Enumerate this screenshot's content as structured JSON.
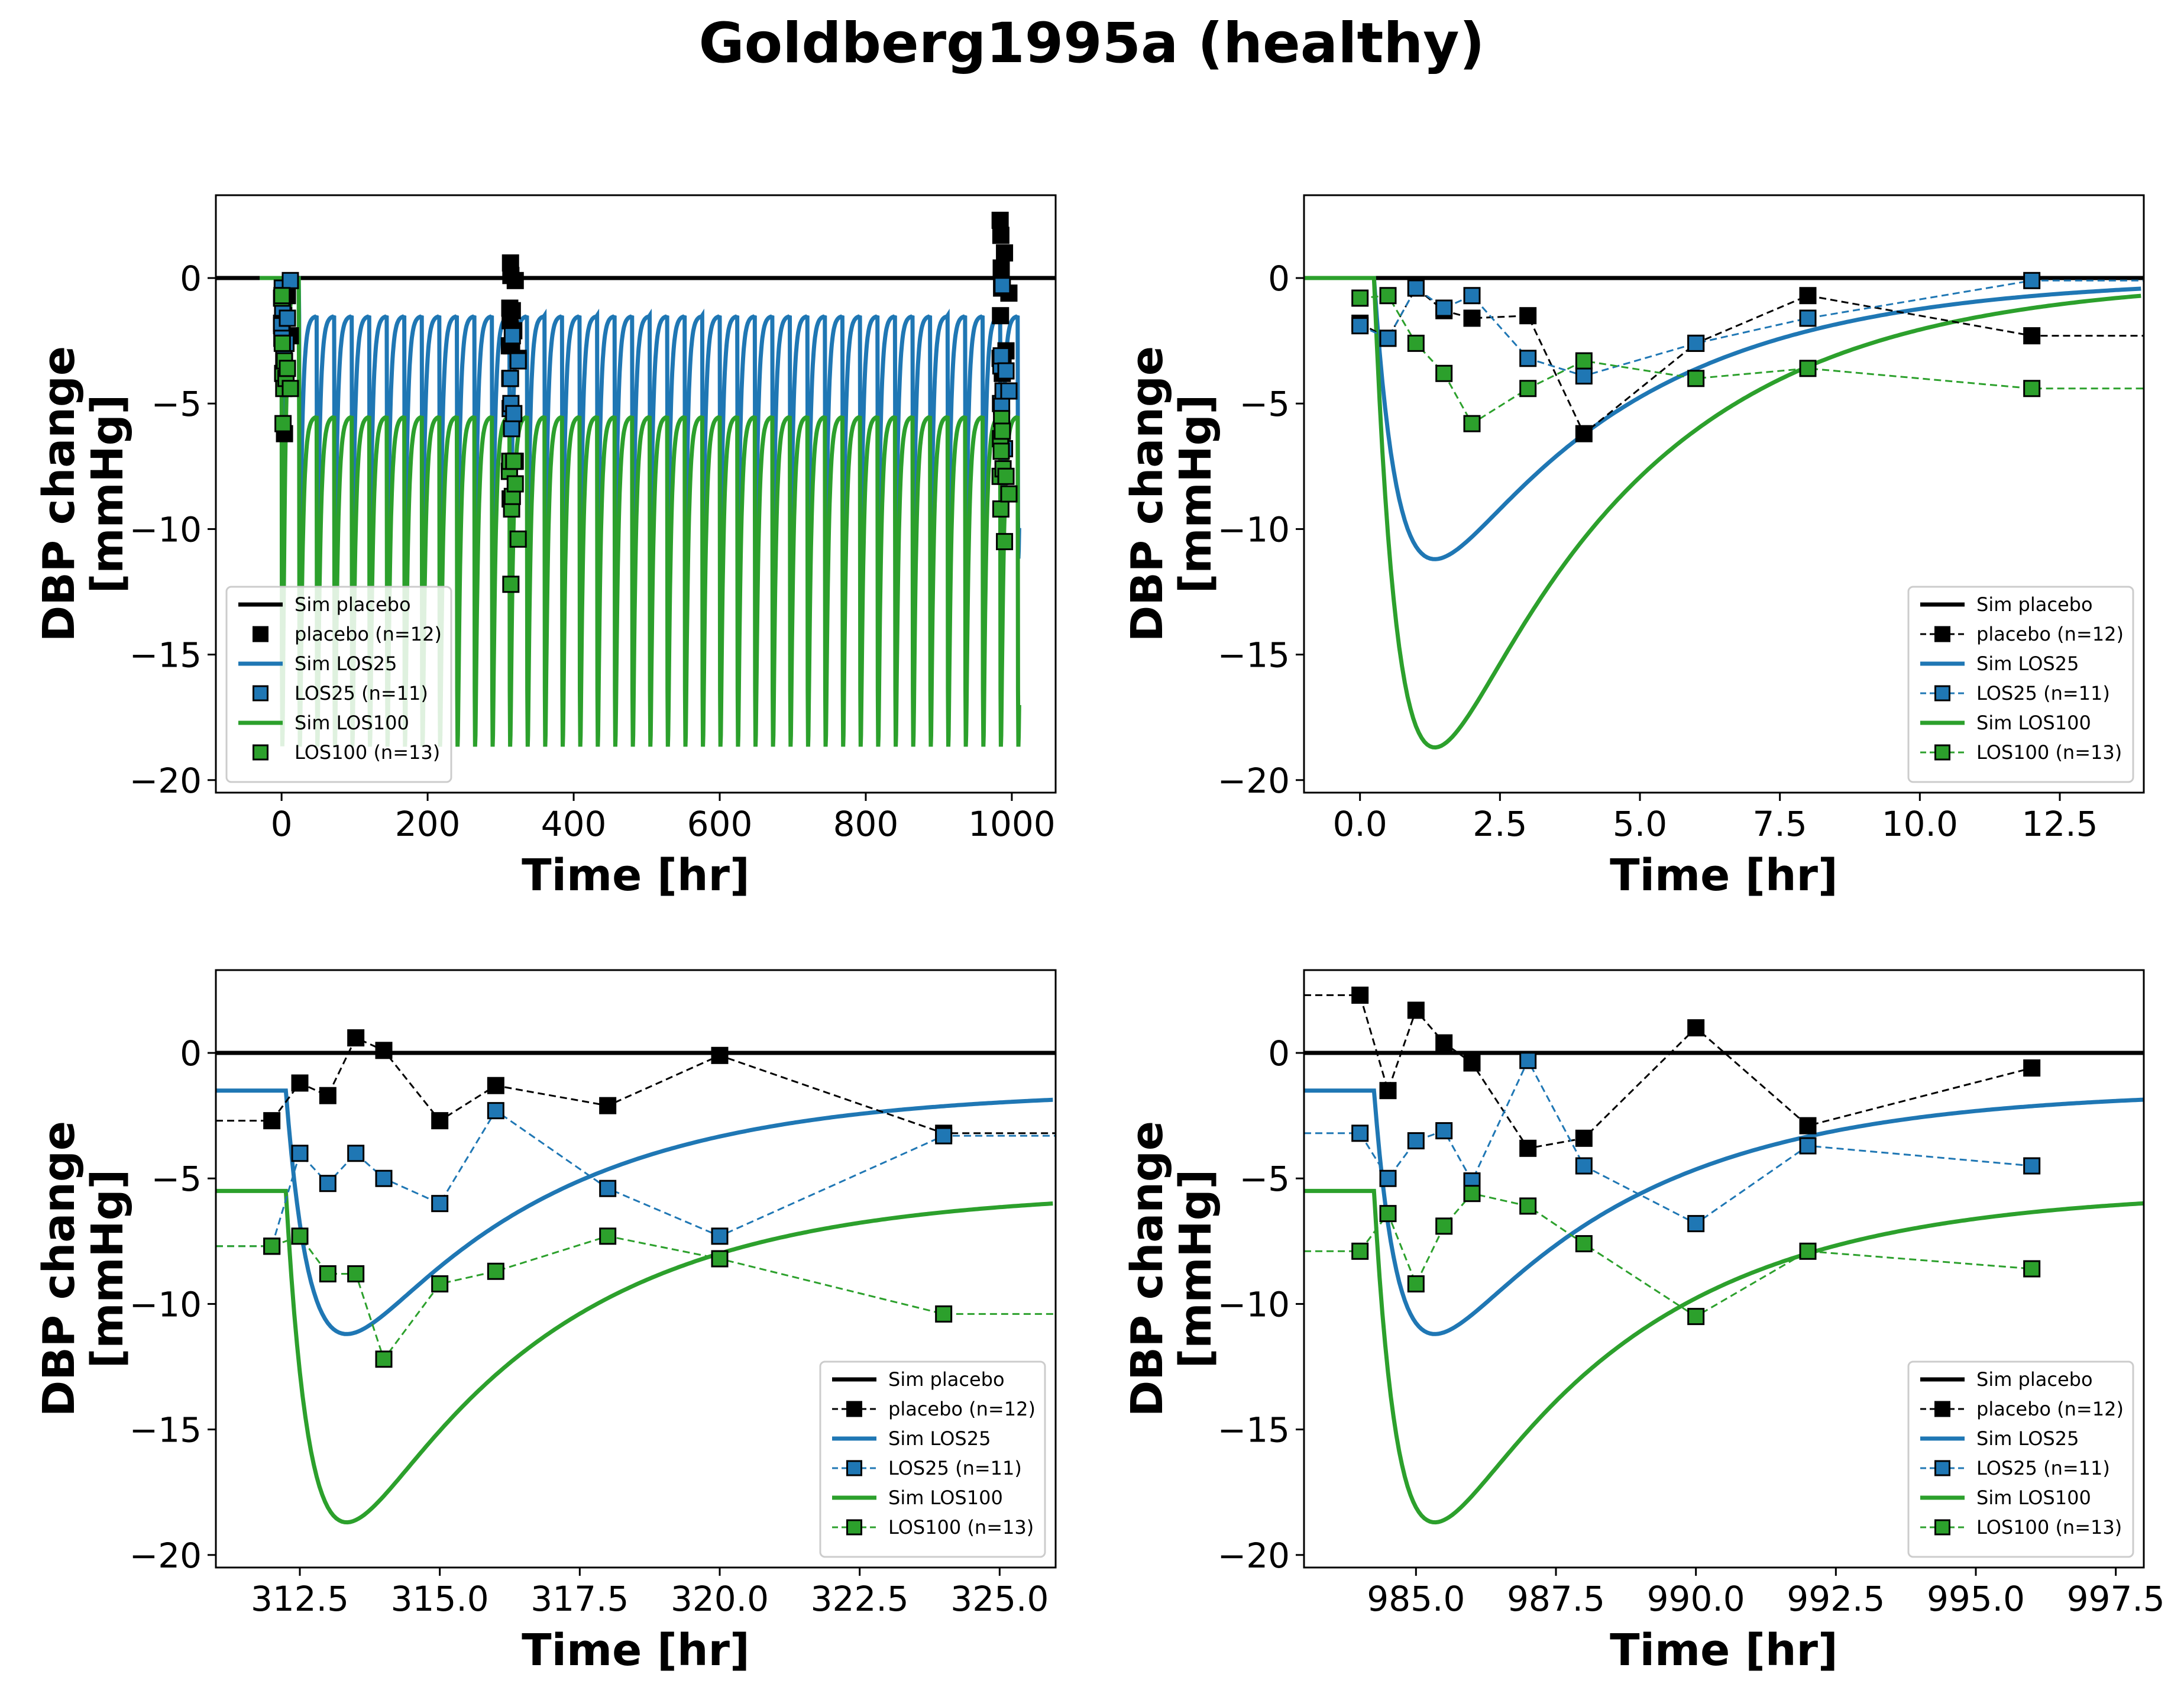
{
  "figure": {
    "title": "Goldberg1995a (healthy)"
  },
  "colors": {
    "placebo": "#000000",
    "los25": "#1f77b4",
    "los100": "#2ca02c"
  },
  "chart_data": [
    {
      "type": "line",
      "panel": "overview",
      "xlabel": "Time [hr]",
      "ylabel_line1": "DBP change",
      "ylabel_line2": "[mmHg]",
      "xlim": [
        -90,
        1060
      ],
      "ylim": [
        -20.5,
        3.3
      ],
      "xticks": [
        0,
        200,
        400,
        600,
        800,
        1000
      ],
      "xtick_labels": [
        "0",
        "200",
        "400",
        "600",
        "800",
        "1000"
      ],
      "yticks": [
        0,
        -5,
        -10,
        -15,
        -20
      ],
      "ytick_labels": [
        "0",
        "−5",
        "−10",
        "−15",
        "−20"
      ],
      "legend": {
        "position": "lower-left",
        "show_lines_for_data": false
      },
      "sim_range": [
        -30,
        1010
      ],
      "series": [
        {
          "name": "Sim placebo",
          "key": "placebo",
          "kind": "sim"
        },
        {
          "name": "placebo (n=12)",
          "key": "placebo",
          "kind": "data",
          "x": [
            0,
            0.5,
            1,
            1.5,
            2,
            3,
            4,
            6,
            8,
            12,
            312,
            312.5,
            313,
            313.5,
            314,
            315,
            316,
            318,
            320,
            324,
            984,
            984.5,
            985,
            985.5,
            986,
            987,
            988,
            990,
            992,
            996
          ],
          "y": [
            -1.8,
            -2.4,
            -0.4,
            -1.3,
            -1.6,
            -1.5,
            -6.2,
            -2.6,
            -0.7,
            -2.3,
            -2.7,
            -1.2,
            -1.7,
            0.6,
            0.1,
            -2.7,
            -1.3,
            -2.1,
            -0.1,
            -3.2,
            2.3,
            -1.5,
            1.7,
            0.4,
            -0.4,
            -3.8,
            -3.4,
            1.0,
            -2.9,
            -0.6
          ]
        },
        {
          "name": "Sim LOS25",
          "key": "los25",
          "kind": "sim"
        },
        {
          "name": "LOS25 (n=11)",
          "key": "los25",
          "kind": "data",
          "x": [
            0,
            0.5,
            1,
            1.5,
            2,
            3,
            4,
            6,
            8,
            12,
            312,
            312.5,
            313,
            313.5,
            314,
            315,
            316,
            318,
            320,
            324,
            984,
            984.5,
            985,
            985.5,
            986,
            987,
            988,
            990,
            992,
            996
          ],
          "y": [
            -1.9,
            -2.4,
            -0.4,
            -1.2,
            -0.7,
            -3.2,
            -3.9,
            -2.6,
            -1.6,
            -0.1,
            -7.7,
            -4.0,
            -5.2,
            -4.0,
            -5.0,
            -6.0,
            -2.3,
            -5.4,
            -7.3,
            -3.3,
            -3.2,
            -5.0,
            -3.5,
            -3.1,
            -5.1,
            -0.3,
            -4.5,
            -6.8,
            -3.7,
            -4.5
          ]
        },
        {
          "name": "Sim LOS100",
          "key": "los100",
          "kind": "sim"
        },
        {
          "name": "LOS100 (n=13)",
          "key": "los100",
          "kind": "data",
          "x": [
            0,
            0.5,
            1,
            1.5,
            2,
            3,
            4,
            6,
            8,
            12,
            312,
            312.5,
            313,
            313.5,
            314,
            315,
            316,
            318,
            320,
            324,
            984,
            984.5,
            985,
            985.5,
            986,
            987,
            988,
            990,
            992,
            996
          ],
          "y": [
            -0.8,
            -0.7,
            -2.6,
            -3.8,
            -5.8,
            -4.4,
            -3.3,
            -4.0,
            -3.6,
            -4.4,
            -7.7,
            -7.3,
            -8.8,
            -8.8,
            -12.2,
            -9.2,
            -8.7,
            -7.3,
            -8.2,
            -10.4,
            -7.9,
            -6.4,
            -9.2,
            -6.9,
            -5.6,
            -6.1,
            -7.6,
            -10.5,
            -7.9,
            -8.6
          ]
        }
      ]
    },
    {
      "type": "line",
      "panel": "day1",
      "xlabel": "Time [hr]",
      "ylabel_line1": "DBP change",
      "ylabel_line2": "[mmHg]",
      "xlim": [
        -1,
        14
      ],
      "ylim": [
        -20.5,
        3.3
      ],
      "xticks": [
        0,
        2.5,
        5,
        7.5,
        10,
        12.5
      ],
      "xtick_labels": [
        "0.0",
        "2.5",
        "5.0",
        "7.5",
        "10.0",
        "12.5"
      ],
      "yticks": [
        0,
        -5,
        -10,
        -15,
        -20
      ],
      "ytick_labels": [
        "0",
        "−5",
        "−10",
        "−15",
        "−20"
      ],
      "legend": {
        "position": "lower-right",
        "show_lines_for_data": true
      },
      "sim_dose_time": 0,
      "sim_baseline": {
        "los25": 0,
        "los100": 0
      },
      "series": [
        {
          "name": "Sim placebo",
          "key": "placebo",
          "kind": "sim"
        },
        {
          "name": "placebo (n=12)",
          "key": "placebo",
          "kind": "data",
          "x": [
            0,
            0.5,
            1,
            1.5,
            2,
            3,
            4,
            6,
            8,
            12,
            14
          ],
          "y": [
            -1.8,
            -2.4,
            -0.4,
            -1.3,
            -1.6,
            -1.5,
            -6.2,
            -2.6,
            -0.7,
            -2.3,
            -2.3
          ]
        },
        {
          "name": "Sim LOS25",
          "key": "los25",
          "kind": "sim"
        },
        {
          "name": "LOS25 (n=11)",
          "key": "los25",
          "kind": "data",
          "x": [
            0,
            0.5,
            1,
            1.5,
            2,
            3,
            4,
            6,
            8,
            12,
            14
          ],
          "y": [
            -1.9,
            -2.4,
            -0.4,
            -1.2,
            -0.7,
            -3.2,
            -3.9,
            -2.6,
            -1.6,
            -0.1,
            -0.1
          ]
        },
        {
          "name": "Sim LOS100",
          "key": "los100",
          "kind": "sim"
        },
        {
          "name": "LOS100 (n=13)",
          "key": "los100",
          "kind": "data",
          "x": [
            0,
            0.5,
            1,
            1.5,
            2,
            3,
            4,
            6,
            8,
            12,
            14
          ],
          "y": [
            -0.8,
            -0.7,
            -2.6,
            -3.8,
            -5.8,
            -4.4,
            -3.3,
            -4.0,
            -3.6,
            -4.4,
            -4.4
          ]
        }
      ]
    },
    {
      "type": "line",
      "panel": "day14",
      "xlabel": "Time [hr]",
      "ylabel_line1": "DBP change",
      "ylabel_line2": "[mmHg]",
      "xlim": [
        311,
        326
      ],
      "ylim": [
        -20.5,
        3.3
      ],
      "xticks": [
        312.5,
        315,
        317.5,
        320,
        322.5,
        325
      ],
      "xtick_labels": [
        "312.5",
        "315.0",
        "317.5",
        "320.0",
        "322.5",
        "325.0"
      ],
      "yticks": [
        0,
        -5,
        -10,
        -15,
        -20
      ],
      "ytick_labels": [
        "0",
        "−5",
        "−10",
        "−15",
        "−20"
      ],
      "legend": {
        "position": "lower-right",
        "show_lines_for_data": true
      },
      "sim_dose_time": 312,
      "sim_baseline": {
        "los25": -1.5,
        "los100": -5.5
      },
      "series": [
        {
          "name": "Sim placebo",
          "key": "placebo",
          "kind": "sim"
        },
        {
          "name": "placebo (n=12)",
          "key": "placebo",
          "kind": "data",
          "x": [
            311,
            312,
            312.5,
            313,
            313.5,
            314,
            315,
            316,
            318,
            320,
            324,
            326
          ],
          "y": [
            -2.7,
            -2.7,
            -1.2,
            -1.7,
            0.6,
            0.1,
            -2.7,
            -1.3,
            -2.1,
            -0.1,
            -3.2,
            -3.2
          ]
        },
        {
          "name": "Sim LOS25",
          "key": "los25",
          "kind": "sim"
        },
        {
          "name": "LOS25 (n=11)",
          "key": "los25",
          "kind": "data",
          "x": [
            311,
            312,
            312.5,
            313,
            313.5,
            314,
            315,
            316,
            318,
            320,
            324,
            326
          ],
          "y": [
            -7.7,
            -7.7,
            -4.0,
            -5.2,
            -4.0,
            -5.0,
            -6.0,
            -2.3,
            -5.4,
            -7.3,
            -3.3,
            -3.3
          ]
        },
        {
          "name": "Sim LOS100",
          "key": "los100",
          "kind": "sim"
        },
        {
          "name": "LOS100 (n=13)",
          "key": "los100",
          "kind": "data",
          "x": [
            311,
            312,
            312.5,
            313,
            313.5,
            314,
            315,
            316,
            318,
            320,
            324,
            326
          ],
          "y": [
            -7.7,
            -7.7,
            -7.3,
            -8.8,
            -8.8,
            -12.2,
            -9.2,
            -8.7,
            -7.3,
            -8.2,
            -10.4,
            -10.4
          ]
        }
      ]
    },
    {
      "type": "line",
      "panel": "day42",
      "xlabel": "Time [hr]",
      "ylabel_line1": "DBP change",
      "ylabel_line2": "[mmHg]",
      "xlim": [
        983,
        998
      ],
      "ylim": [
        -20.5,
        3.3
      ],
      "xticks": [
        985,
        987.5,
        990,
        992.5,
        995,
        997.5
      ],
      "xtick_labels": [
        "985.0",
        "987.5",
        "990.0",
        "992.5",
        "995.0",
        "997.5"
      ],
      "yticks": [
        0,
        -5,
        -10,
        -15,
        -20
      ],
      "ytick_labels": [
        "0",
        "−5",
        "−10",
        "−15",
        "−20"
      ],
      "legend": {
        "position": "lower-right",
        "show_lines_for_data": true
      },
      "sim_dose_time": 984,
      "sim_baseline": {
        "los25": -1.5,
        "los100": -5.5
      },
      "series": [
        {
          "name": "Sim placebo",
          "key": "placebo",
          "kind": "sim"
        },
        {
          "name": "placebo (n=12)",
          "key": "placebo",
          "kind": "data",
          "x": [
            983,
            984,
            984.5,
            985,
            985.5,
            986,
            987,
            988,
            990,
            992,
            996
          ],
          "y": [
            2.3,
            2.3,
            -1.5,
            1.7,
            0.4,
            -0.4,
            -3.8,
            -3.4,
            1.0,
            -2.9,
            -0.6
          ]
        },
        {
          "name": "Sim LOS25",
          "key": "los25",
          "kind": "sim"
        },
        {
          "name": "LOS25 (n=11)",
          "key": "los25",
          "kind": "data",
          "x": [
            983,
            984,
            984.5,
            985,
            985.5,
            986,
            987,
            988,
            990,
            992,
            996
          ],
          "y": [
            -3.2,
            -3.2,
            -5.0,
            -3.5,
            -3.1,
            -5.1,
            -0.3,
            -4.5,
            -6.8,
            -3.7,
            -4.5
          ]
        },
        {
          "name": "Sim LOS100",
          "key": "los100",
          "kind": "sim"
        },
        {
          "name": "LOS100 (n=13)",
          "key": "los100",
          "kind": "data",
          "x": [
            983,
            984,
            984.5,
            985,
            985.5,
            986,
            987,
            988,
            990,
            992,
            996
          ],
          "y": [
            -7.9,
            -7.9,
            -6.4,
            -9.2,
            -6.9,
            -5.6,
            -6.1,
            -7.6,
            -10.5,
            -7.9,
            -8.6
          ]
        }
      ]
    }
  ]
}
